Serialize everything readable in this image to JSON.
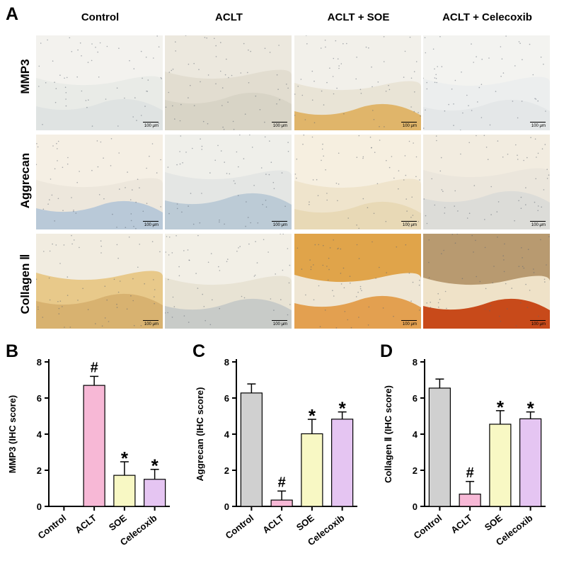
{
  "panel_a": {
    "letter": "A",
    "columns": [
      "Control",
      "ACLT",
      "ACLT + SOE",
      "ACLT + Celecoxib"
    ],
    "rows": [
      "MMP3",
      "Aggrecan",
      "Collagen Ⅱ"
    ],
    "scale_label": "100 μm"
  },
  "chart_data": [
    {
      "type": "bar",
      "letter": "B",
      "categories": [
        "Control",
        "ACLT",
        "SOE",
        "Celecoxib"
      ],
      "values": [
        0,
        6.7,
        1.72,
        1.5
      ],
      "errors": [
        0,
        0.5,
        0.75,
        0.55
      ],
      "significance": [
        "",
        "#",
        "*",
        "*"
      ],
      "ylabel": "MMP3 (IHC score)",
      "ylim": [
        0,
        8
      ],
      "yticks": [
        0,
        2,
        4,
        6,
        8
      ],
      "colors": [
        "#d0d0d0",
        "#f7b8d6",
        "#f8f8c4",
        "#e5c5f2"
      ]
    },
    {
      "type": "bar",
      "letter": "C",
      "categories": [
        "Control",
        "ACLT",
        "SOE",
        "Celecoxib"
      ],
      "values": [
        6.28,
        0.35,
        4.02,
        4.83
      ],
      "errors": [
        0.5,
        0.5,
        0.8,
        0.4
      ],
      "significance": [
        "",
        "#",
        "*",
        "*"
      ],
      "ylabel": "Aggrecan (IHC score)",
      "ylim": [
        0,
        8
      ],
      "yticks": [
        0,
        2,
        4,
        6,
        8
      ],
      "colors": [
        "#d0d0d0",
        "#f7b8d6",
        "#f8f8c4",
        "#e5c5f2"
      ]
    },
    {
      "type": "bar",
      "letter": "D",
      "categories": [
        "Control",
        "ACLT",
        "SOE",
        "Celecoxib"
      ],
      "values": [
        6.55,
        0.68,
        4.55,
        4.85
      ],
      "errors": [
        0.5,
        0.7,
        0.75,
        0.38
      ],
      "significance": [
        "",
        "#",
        "*",
        "*"
      ],
      "ylabel": "Collagen Ⅱ (IHC score)",
      "ylim": [
        0,
        8
      ],
      "yticks": [
        0,
        2,
        4,
        6,
        8
      ],
      "colors": [
        "#d0d0d0",
        "#f7b8d6",
        "#f8f8c4",
        "#e5c5f2"
      ]
    }
  ]
}
